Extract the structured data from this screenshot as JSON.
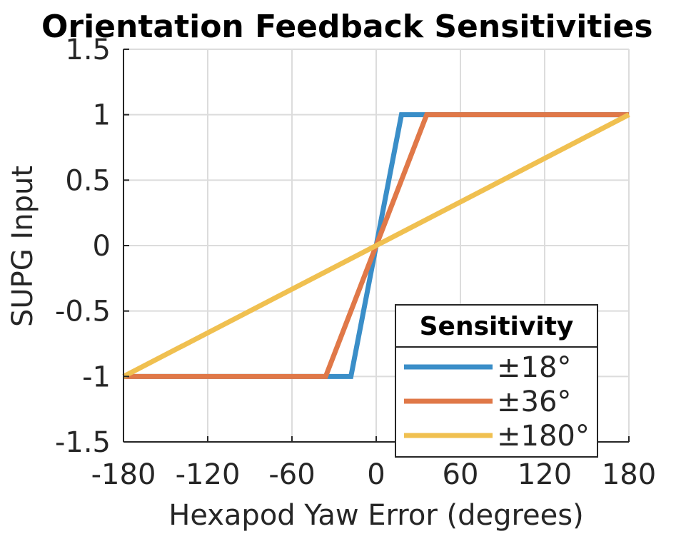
{
  "chart_data": {
    "type": "line",
    "title": "Orientation Feedback Sensitivities",
    "xlabel": "Hexapod Yaw Error (degrees)",
    "ylabel": "SUPG Input",
    "xlim": [
      -180,
      180
    ],
    "ylim": [
      -1.5,
      1.5
    ],
    "xticks": [
      -180,
      -120,
      -60,
      0,
      60,
      120,
      180
    ],
    "yticks": [
      -1.5,
      -1,
      -0.5,
      0,
      0.5,
      1,
      1.5
    ],
    "xtick_labels": [
      "-180",
      "-120",
      "-60",
      "0",
      "60",
      "120",
      "180"
    ],
    "ytick_labels": [
      "-1.5",
      "-1",
      "-0.5",
      "0",
      "0.5",
      "1",
      "1.5"
    ],
    "grid": true,
    "legend": {
      "title": "Sensitivity",
      "placement": "bottom-right"
    },
    "series": [
      {
        "name": "±18°",
        "color": "#3a8ec8",
        "x": [
          -180,
          -18,
          18,
          180
        ],
        "y": [
          -1,
          -1,
          1,
          1
        ]
      },
      {
        "name": "±36°",
        "color": "#e07848",
        "x": [
          -180,
          -36,
          36,
          180
        ],
        "y": [
          -1,
          -1,
          1,
          1
        ]
      },
      {
        "name": "±180°",
        "color": "#f0c050",
        "x": [
          -180,
          180
        ],
        "y": [
          -1,
          1
        ]
      }
    ]
  }
}
